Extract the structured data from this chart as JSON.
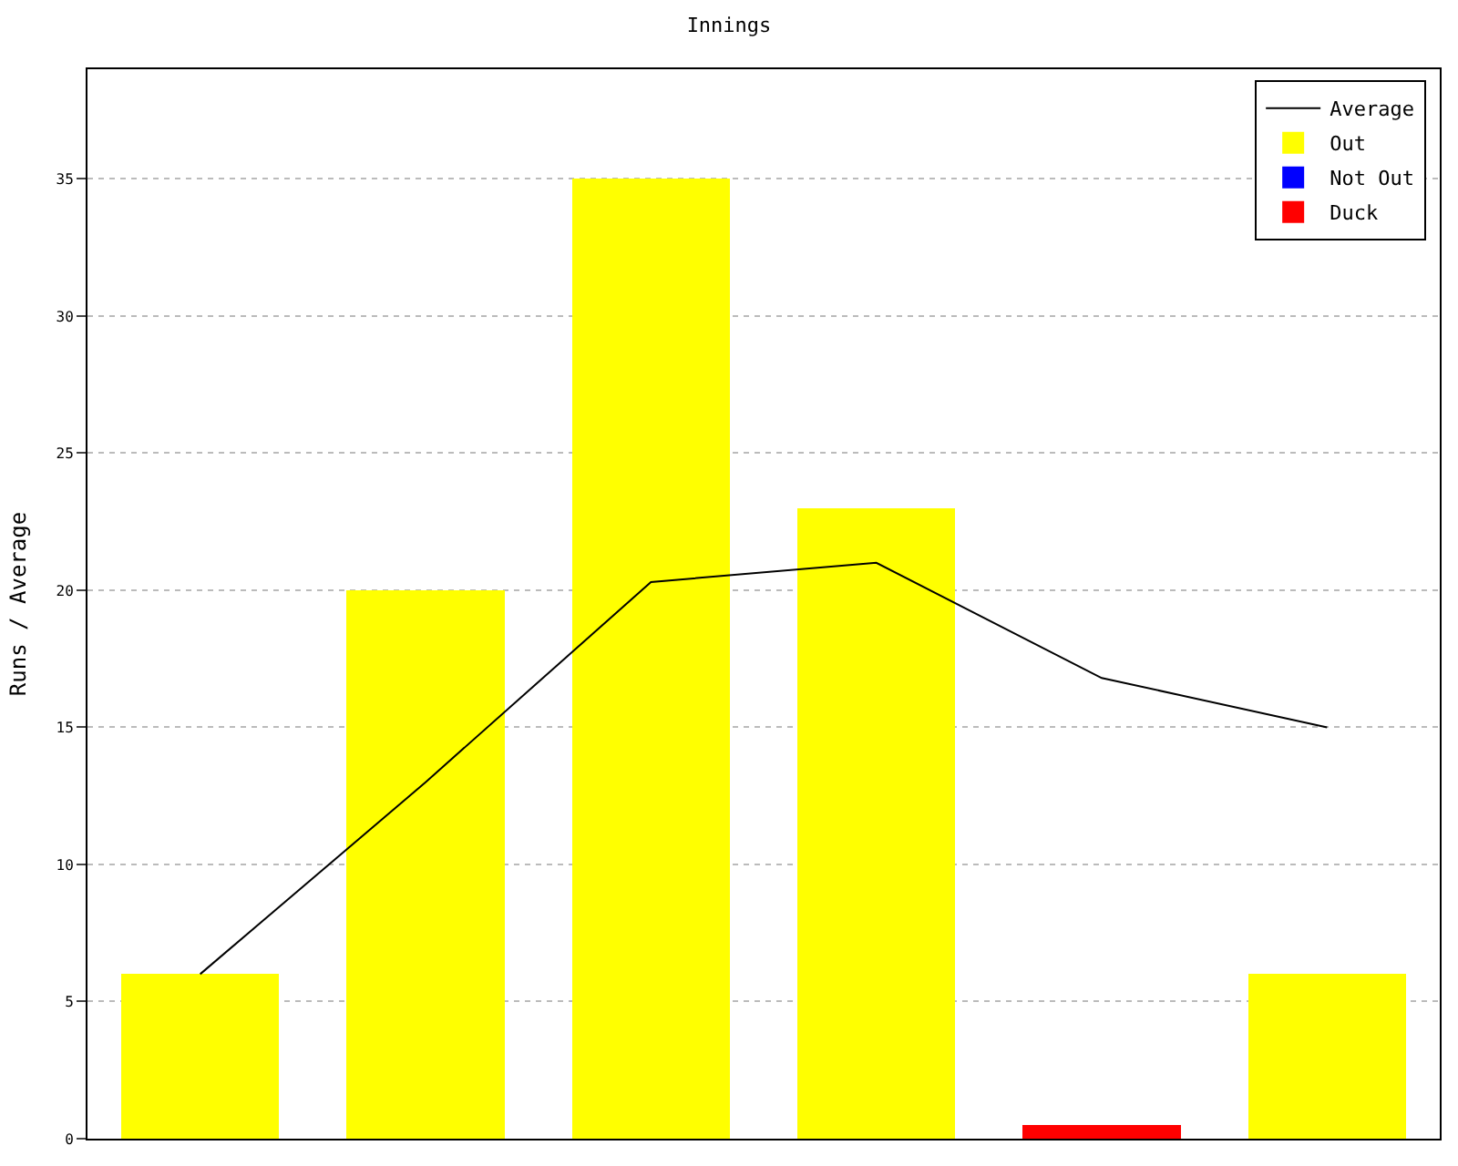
{
  "chart_data": {
    "type": "bar",
    "title": "Innings",
    "ylabel": "Runs / Average",
    "categories": [
      null,
      null,
      null,
      null,
      null,
      null
    ],
    "stacked": true,
    "series": [
      {
        "name": "Average",
        "type": "line",
        "color": "#000000",
        "values": [
          6,
          13,
          20.3,
          21,
          16.8,
          15
        ]
      },
      {
        "name": "Out",
        "color": "#ffff00",
        "values": [
          6,
          20,
          35,
          23,
          null,
          6
        ]
      },
      {
        "name": "Not Out",
        "color": "#0000ff",
        "values": [
          null,
          null,
          null,
          null,
          null,
          null
        ]
      },
      {
        "name": "Duck",
        "color": "#ff0000",
        "values": [
          null,
          null,
          null,
          null,
          0.5,
          null
        ]
      }
    ],
    "ylim": [
      0,
      39
    ],
    "yticks": [
      0,
      5,
      10,
      15,
      20,
      25,
      30,
      35
    ],
    "grid": "y",
    "legend": "top right",
    "marker": "none",
    "line_style": "solid"
  }
}
